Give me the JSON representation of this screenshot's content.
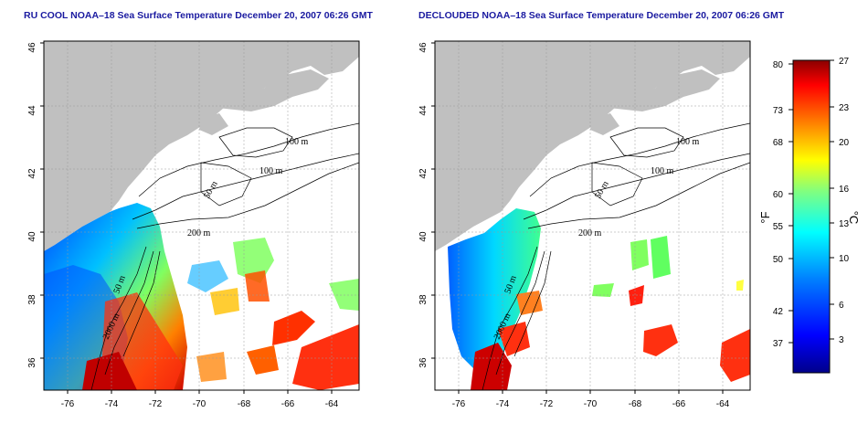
{
  "maps": [
    {
      "title": "RU COOL NOAA–18 Sea Surface Temperature December 20, 2007 06:26 GMT",
      "lat_labels": [
        "46",
        "44",
        "42",
        "40",
        "38",
        "36"
      ],
      "lon_labels": [
        "-76",
        "-74",
        "-72",
        "-70",
        "-68",
        "-66",
        "-64"
      ],
      "contours": [
        "100 m",
        "100 m",
        "50 m",
        "200 m",
        "50 m",
        "2000 m"
      ]
    },
    {
      "title": "DECLOUDED NOAA–18 Sea Surface Temperature December 20, 2007 06:26 GMT",
      "lat_labels": [
        "46",
        "44",
        "42",
        "40",
        "38",
        "36"
      ],
      "lon_labels": [
        "-76",
        "-74",
        "-72",
        "-70",
        "-68",
        "-66",
        "-64"
      ],
      "contours": [
        "100 m",
        "100 m",
        "50 m",
        "200 m",
        "50 m",
        "2000 m"
      ]
    }
  ],
  "colorbar": {
    "f_unit": "°F",
    "c_unit": "°C",
    "f_labels": [
      "80",
      "73",
      "68",
      "60",
      "55",
      "50",
      "42",
      "37"
    ],
    "c_labels": [
      "27",
      "23",
      "20",
      "16",
      "13",
      "10",
      "6",
      "3"
    ]
  },
  "colors": {
    "land": "#c0c0c0",
    "title": "#1a1aa0",
    "ramp": [
      "#00008a",
      "#0000ff",
      "#0080ff",
      "#00ffff",
      "#80ff80",
      "#ffff00",
      "#ff8000",
      "#ff0000",
      "#8a0000"
    ]
  }
}
